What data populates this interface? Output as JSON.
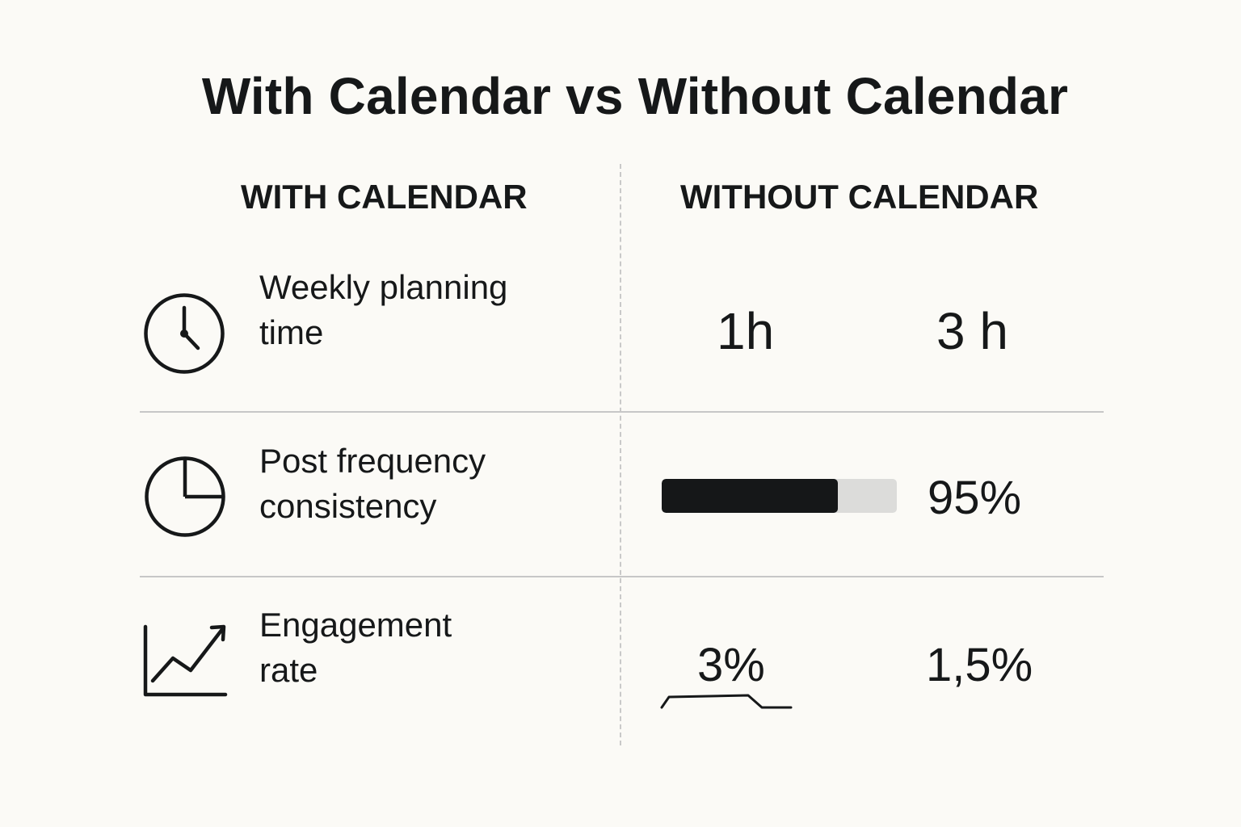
{
  "title": "With Calendar vs Without Calendar",
  "columns": {
    "with": "WITH CALENDAR",
    "without": "WITHOUT CALENDAR"
  },
  "rows": [
    {
      "icon": "clock-icon",
      "label_line1": "Weekly planning",
      "label_line2": "time",
      "with_value": "1h",
      "without_value": "3 h"
    },
    {
      "icon": "pie-chart-icon",
      "label_line1": "Post frequency",
      "label_line2": "consistency",
      "with_progress": 0.75,
      "without_value": "95%"
    },
    {
      "icon": "trending-up-chart-icon",
      "label_line1": "Engagement",
      "label_line2": "rate",
      "with_value": "3%",
      "without_value": "1,5%"
    }
  ]
}
